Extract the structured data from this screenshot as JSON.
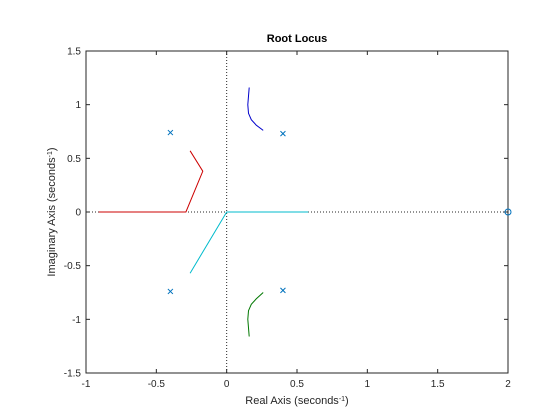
{
  "chart_data": {
    "type": "root-locus",
    "title": "Root Locus",
    "xlabel": "Real Axis (seconds",
    "xlabel_exp": "-1",
    "xlabel_close": ")",
    "ylabel": "Imaginary Axis (seconds",
    "ylabel_exp": "-1",
    "ylabel_close": ")",
    "xlim": [
      -1,
      2
    ],
    "ylim": [
      -1.5,
      1.5
    ],
    "xticks": [
      -1,
      -0.5,
      0,
      0.5,
      1,
      1.5,
      2
    ],
    "yticks": [
      -1.5,
      -1,
      -0.5,
      0,
      0.5,
      1,
      1.5
    ],
    "xtick_labels": [
      "-1",
      "-0.5",
      "0",
      "0.5",
      "1",
      "1.5",
      "2"
    ],
    "ytick_labels": [
      "-1.5",
      "-1",
      "-0.5",
      "0",
      "0.5",
      "1",
      "1.5"
    ],
    "grid": false,
    "poles": [
      {
        "re": -0.4,
        "im": 0.74
      },
      {
        "re": -0.4,
        "im": -0.74
      },
      {
        "re": 0.4,
        "im": 0.73
      },
      {
        "re": 0.4,
        "im": -0.73
      }
    ],
    "zeros": [
      {
        "re": 2.0,
        "im": 0.0
      }
    ],
    "series": [
      {
        "color": "#0000cc",
        "points": [
          [
            0.16,
            1.16
          ],
          [
            0.155,
            1.08
          ],
          [
            0.15,
            1.0
          ],
          [
            0.155,
            0.92
          ],
          [
            0.175,
            0.86
          ],
          [
            0.21,
            0.81
          ],
          [
            0.26,
            0.76
          ]
        ]
      },
      {
        "color": "#007700",
        "points": [
          [
            0.16,
            -1.16
          ],
          [
            0.155,
            -1.08
          ],
          [
            0.15,
            -1.0
          ],
          [
            0.155,
            -0.92
          ],
          [
            0.175,
            -0.86
          ],
          [
            0.21,
            -0.81
          ],
          [
            0.26,
            -0.75
          ]
        ]
      },
      {
        "color": "#cc0000",
        "points": [
          [
            -0.26,
            0.57
          ],
          [
            -0.17,
            0.38
          ],
          [
            -0.29,
            0.0
          ],
          [
            -0.91,
            0.0
          ]
        ]
      },
      {
        "color": "#00bbcc",
        "points": [
          [
            -0.26,
            -0.57
          ],
          [
            0.0,
            0.0
          ],
          [
            0.58,
            0.0
          ]
        ]
      }
    ],
    "marker_color": "#0072bd"
  }
}
